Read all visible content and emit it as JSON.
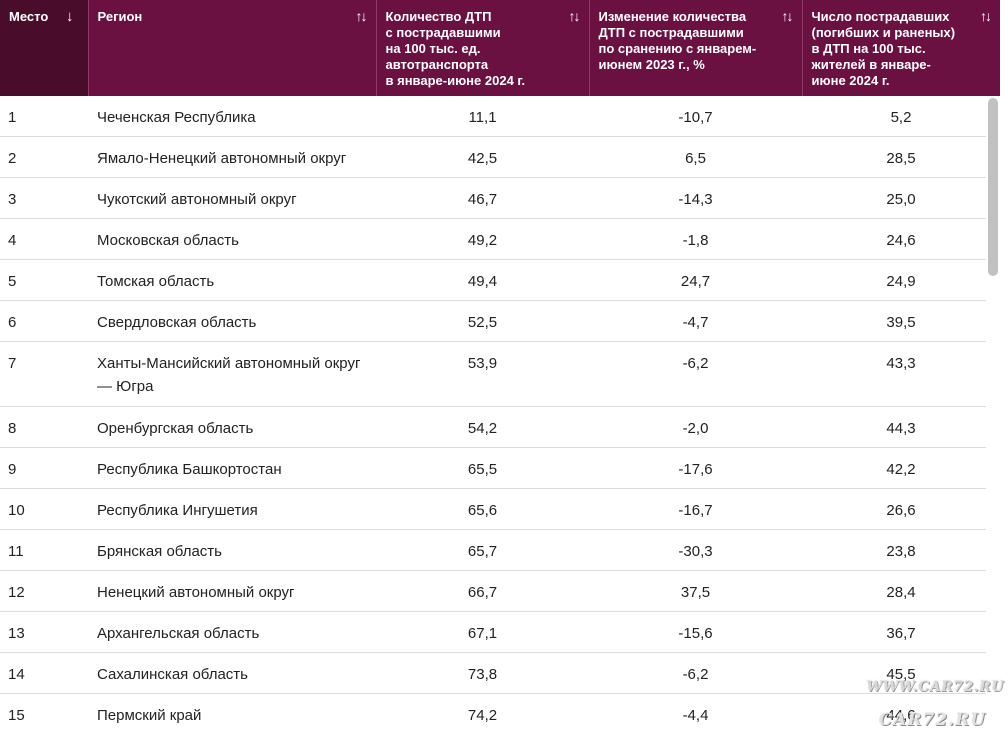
{
  "table": {
    "headers": [
      {
        "lines": [
          "Место"
        ],
        "sort_icon": "↓"
      },
      {
        "lines": [
          "Регион"
        ],
        "sort_icon": "↑↓"
      },
      {
        "lines": [
          "Количество ДТП",
          "с пострадавшими",
          "на 100 тыс. ед.",
          "автотранспорта",
          "в январе-июне 2024 г."
        ],
        "sort_icon": "↑↓"
      },
      {
        "lines": [
          "Изменение количества",
          "ДТП с пострадавшими",
          "по сранению с январем-",
          "июнем 2023 г., %"
        ],
        "sort_icon": "↑↓"
      },
      {
        "lines": [
          "Число пострадавших",
          "(погибших и раненых)",
          "в ДТП на 100 тыс.",
          "жителей в январе-",
          "июне 2024 г."
        ],
        "sort_icon": "↑↓"
      }
    ],
    "rows": [
      {
        "place": "1",
        "region": "Чеченская Республика",
        "accidents": "11,1",
        "change": "-10,7",
        "victims": "5,2"
      },
      {
        "place": "2",
        "region": "Ямало-Ненецкий автономный округ",
        "accidents": "42,5",
        "change": "6,5",
        "victims": "28,5"
      },
      {
        "place": "3",
        "region": "Чукотский автономный округ",
        "accidents": "46,7",
        "change": "-14,3",
        "victims": "25,0"
      },
      {
        "place": "4",
        "region": "Московская область",
        "accidents": "49,2",
        "change": "-1,8",
        "victims": "24,6"
      },
      {
        "place": "5",
        "region": "Томская область",
        "accidents": "49,4",
        "change": "24,7",
        "victims": "24,9"
      },
      {
        "place": "6",
        "region": "Свердловская область",
        "accidents": "52,5",
        "change": "-4,7",
        "victims": "39,5"
      },
      {
        "place": "7",
        "region": "Ханты-Мансийский автономный округ — Югра",
        "accidents": "53,9",
        "change": "-6,2",
        "victims": "43,3"
      },
      {
        "place": "8",
        "region": "Оренбургская область",
        "accidents": "54,2",
        "change": "-2,0",
        "victims": "44,3"
      },
      {
        "place": "9",
        "region": "Республика Башкортостан",
        "accidents": "65,5",
        "change": "-17,6",
        "victims": "42,2"
      },
      {
        "place": "10",
        "region": "Республика Ингушетия",
        "accidents": "65,6",
        "change": "-16,7",
        "victims": "26,6"
      },
      {
        "place": "11",
        "region": "Брянская область",
        "accidents": "65,7",
        "change": "-30,3",
        "victims": "23,8"
      },
      {
        "place": "12",
        "region": "Ненецкий автономный округ",
        "accidents": "66,7",
        "change": "37,5",
        "victims": "28,4"
      },
      {
        "place": "13",
        "region": "Архангельская область",
        "accidents": "67,1",
        "change": "-15,6",
        "victims": "36,7"
      },
      {
        "place": "14",
        "region": "Сахалинская область",
        "accidents": "73,8",
        "change": "-6,2",
        "victims": "45,5"
      },
      {
        "place": "15",
        "region": "Пермский край",
        "accidents": "74,2",
        "change": "-4,4",
        "victims": "44,6"
      }
    ]
  },
  "watermark": {
    "line1": "WWW.CAR72.RU",
    "line2": "CAR72.RU"
  },
  "colors": {
    "header_bg": "#6a1142",
    "header_first_bg": "#4a0c2b",
    "header_text": "#ffffff",
    "row_border": "#dcdcdc"
  }
}
